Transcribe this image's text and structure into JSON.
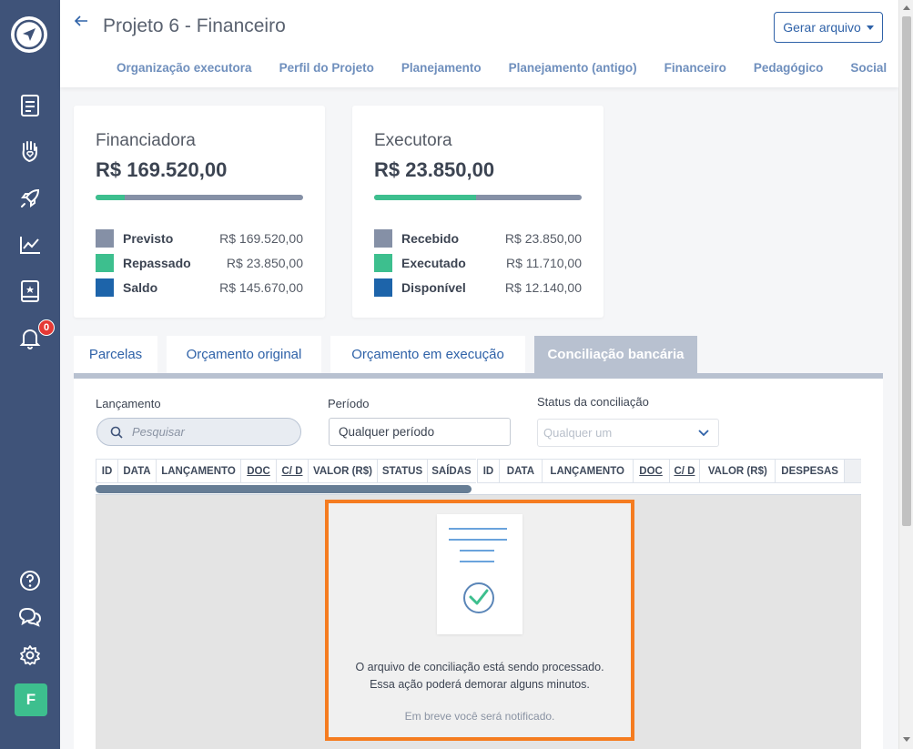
{
  "sidebar": {
    "icons": [
      "logo-icon",
      "document-icon",
      "hand-heart-icon",
      "rocket-icon",
      "chart-icon",
      "book-icon",
      "bell-icon",
      "help-icon",
      "chat-icon",
      "gear-icon"
    ],
    "notification_count": "0",
    "avatar_letter": "F",
    "colors": {
      "bg": "#3f5379",
      "avatar": "#3dbf8e",
      "badge": "#e53935"
    }
  },
  "header": {
    "title": "Projeto 6 - Financeiro",
    "generate_button": "Gerar arquivo",
    "nav": [
      "Organização executora",
      "Perfil do Projeto",
      "Planejamento",
      "Planejamento (antigo)",
      "Financeiro",
      "Pedagógico",
      "Social"
    ]
  },
  "cards": {
    "financiadora": {
      "title": "Financiadora",
      "amount": "R$ 169.520,00",
      "progress_fraction": 0.14,
      "rows": [
        {
          "label": "Previsto",
          "value": "R$ 169.520,00",
          "color": "#8590a6"
        },
        {
          "label": "Repassado",
          "value": "R$ 23.850,00",
          "color": "#3dbf8e"
        },
        {
          "label": "Saldo",
          "value": "R$ 145.670,00",
          "color": "#1d64aa"
        }
      ]
    },
    "executora": {
      "title": "Executora",
      "amount": "R$ 23.850,00",
      "progress_fraction": 0.49,
      "rows": [
        {
          "label": "Recebido",
          "value": "R$ 23.850,00",
          "color": "#8590a6"
        },
        {
          "label": "Executado",
          "value": "R$ 11.710,00",
          "color": "#3dbf8e"
        },
        {
          "label": "Disponível",
          "value": "R$ 12.140,00",
          "color": "#1d64aa"
        }
      ]
    }
  },
  "tabs": [
    "Parcelas",
    "Orçamento original",
    "Orçamento em execução",
    "Conciliação bancária"
  ],
  "active_tab": "Conciliação bancária",
  "filters": {
    "lancamento_label": "Lançamento",
    "search_placeholder": "Pesquisar",
    "periodo_label": "Período",
    "periodo_value": "Qualquer período",
    "status_label": "Status da conciliação",
    "status_placeholder": "Qualquer um"
  },
  "table_left_columns": [
    "ID",
    "DATA",
    "LANÇAMENTO",
    "DOC",
    "C/ D",
    "VALOR (R$)",
    "STATUS",
    "SAÍDAS"
  ],
  "table_right_columns": [
    "ID",
    "DATA",
    "LANÇAMENTO",
    "DOC",
    "C/ D",
    "VALOR (R$)",
    "DESPESAS"
  ],
  "processing": {
    "line1": "O arquivo de conciliação está sendo processado.",
    "line2": "Essa ação poderá demorar alguns minutos.",
    "note": "Em breve você será notificado."
  }
}
